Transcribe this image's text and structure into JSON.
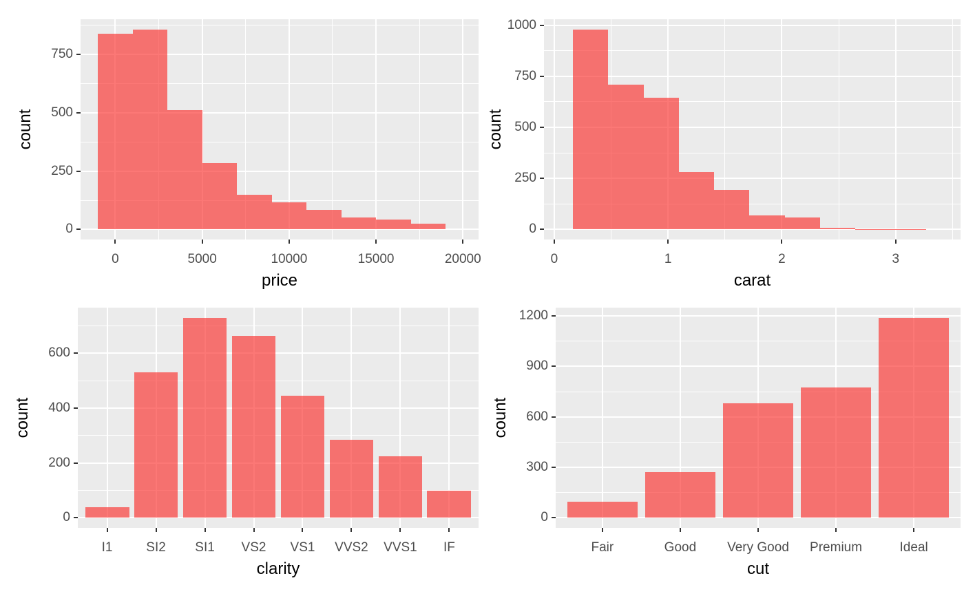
{
  "figure": {
    "description": "2x2 grid of ggplot2-style distribution charts of diamonds data",
    "background": "#FFFFFF"
  },
  "style": {
    "bar_fill": "rgba(250,48,45,0.65)",
    "bar_fill_apparent": "#F47270",
    "panel_background": "#EBEBEB",
    "gridline_color": "#FFFFFF",
    "tick_mark_color": "#333333",
    "tick_label_color": "#4D4D4D",
    "axis_title_color": "#000000"
  },
  "chart_data": [
    {
      "type": "bar",
      "subtype": "histogram",
      "title": "",
      "xlabel": "price",
      "ylabel": "count",
      "legend": false,
      "grid": true,
      "bin_start": -1000,
      "bin_width": 2000,
      "counts": [
        840,
        858,
        513,
        285,
        150,
        116,
        83,
        50,
        42,
        25
      ],
      "xlim": [
        -2000,
        20900
      ],
      "x_ticks": [
        {
          "v": 0,
          "label": "0"
        },
        {
          "v": 5000,
          "label": "5000"
        },
        {
          "v": 10000,
          "label": "10000"
        },
        {
          "v": 15000,
          "label": "15000"
        },
        {
          "v": 20000,
          "label": "20000"
        }
      ],
      "x_minor": [
        2500,
        7500,
        12500,
        17500
      ],
      "ylim": [
        -43,
        901
      ],
      "y_ticks": [
        {
          "v": 0,
          "label": "0"
        },
        {
          "v": 250,
          "label": "250"
        },
        {
          "v": 500,
          "label": "500"
        },
        {
          "v": 750,
          "label": "750"
        }
      ],
      "y_minor": [
        125,
        375,
        625,
        875
      ],
      "fill": "rgba(250,48,45,0.65)"
    },
    {
      "type": "bar",
      "subtype": "histogram",
      "title": "",
      "xlabel": "carat",
      "ylabel": "count",
      "legend": false,
      "grid": true,
      "bin_start": 0.165,
      "bin_width": 0.31,
      "counts": [
        980,
        710,
        645,
        282,
        195,
        68,
        60,
        9,
        2,
        2
      ],
      "xlim": [
        -0.09,
        3.57
      ],
      "x_ticks": [
        {
          "v": 0,
          "label": "0"
        },
        {
          "v": 1,
          "label": "1"
        },
        {
          "v": 2,
          "label": "2"
        },
        {
          "v": 3,
          "label": "3"
        }
      ],
      "x_minor": [
        0.5,
        1.5,
        2.5,
        3.5
      ],
      "ylim": [
        -49,
        1029
      ],
      "y_ticks": [
        {
          "v": 0,
          "label": "0"
        },
        {
          "v": 250,
          "label": "250"
        },
        {
          "v": 500,
          "label": "500"
        },
        {
          "v": 750,
          "label": "750"
        },
        {
          "v": 1000,
          "label": "1000"
        }
      ],
      "y_minor": [
        125,
        375,
        625,
        875
      ],
      "fill": "rgba(250,48,45,0.65)"
    },
    {
      "type": "bar",
      "subtype": "categorical",
      "title": "",
      "xlabel": "clarity",
      "ylabel": "count",
      "legend": false,
      "grid": true,
      "categories": [
        "I1",
        "SI2",
        "SI1",
        "VS2",
        "VS1",
        "VVS2",
        "VVS1",
        "IF"
      ],
      "counts": [
        38,
        532,
        730,
        665,
        445,
        285,
        225,
        98
      ],
      "ylim": [
        -37,
        767
      ],
      "y_ticks": [
        {
          "v": 0,
          "label": "0"
        },
        {
          "v": 200,
          "label": "200"
        },
        {
          "v": 400,
          "label": "400"
        },
        {
          "v": 600,
          "label": "600"
        }
      ],
      "y_minor": [
        100,
        300,
        500,
        700
      ],
      "fill": "rgba(250,48,45,0.65)"
    },
    {
      "type": "bar",
      "subtype": "categorical",
      "title": "",
      "xlabel": "cut",
      "ylabel": "count",
      "legend": false,
      "grid": true,
      "categories": [
        "Fair",
        "Good",
        "Very Good",
        "Premium",
        "Ideal"
      ],
      "counts": [
        96,
        272,
        680,
        775,
        1190
      ],
      "ylim": [
        -60,
        1250
      ],
      "y_ticks": [
        {
          "v": 0,
          "label": "0"
        },
        {
          "v": 300,
          "label": "300"
        },
        {
          "v": 600,
          "label": "600"
        },
        {
          "v": 900,
          "label": "900"
        },
        {
          "v": 1200,
          "label": "1200"
        }
      ],
      "y_minor": [
        150,
        450,
        750,
        1050
      ],
      "fill": "rgba(250,48,45,0.65)"
    }
  ]
}
